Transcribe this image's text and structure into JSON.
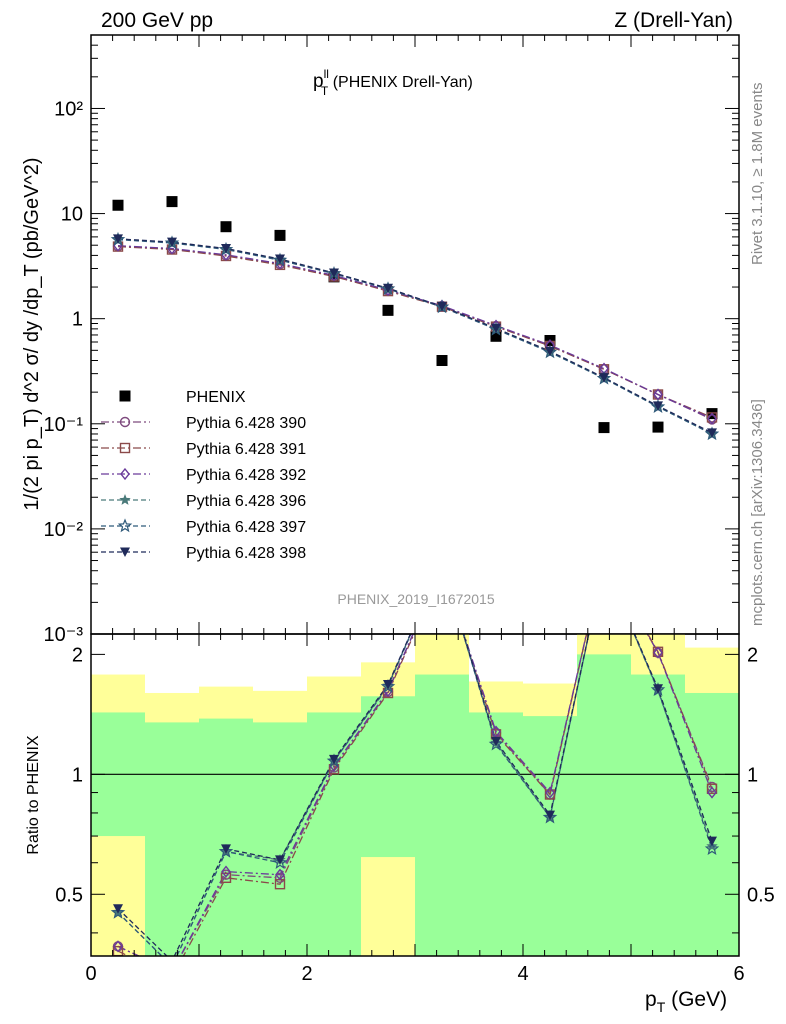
{
  "header": {
    "left": "200 GeV pp",
    "right": "Z (Drell-Yan)"
  },
  "side_labels": {
    "rivet": "Rivet 3.1.10, ≥ 1.8M events",
    "mcplots": "mcplots.cern.ch [arXiv:1306.3436]"
  },
  "chart_data": [
    {
      "type": "scatter",
      "title": "p_T^ll (PHENIX Drell-Yan)",
      "title_main": "p",
      "title_sup": "ll",
      "title_sub": "T",
      "title_rest": " (PHENIX Drell-Yan)",
      "analysis_label": "PHENIX_2019_I1672015",
      "ylabel": "1/(2 pi p_T) d^2 σ/ dy /dp_T (pb/GeV^2)",
      "yscale": "log",
      "ylim": [
        0.001,
        500
      ],
      "xlim": [
        0,
        6
      ],
      "y_tick_labels": [
        "10⁻³",
        "10⁻²",
        "10⁻¹",
        "1",
        "10",
        "10²"
      ],
      "legend_position": "lower-left",
      "x": [
        0.25,
        0.75,
        1.25,
        1.75,
        2.25,
        2.75,
        3.25,
        3.75,
        4.25,
        4.75,
        5.25,
        5.75
      ],
      "series": [
        {
          "name": "PHENIX",
          "marker": "square-filled",
          "color": "#000000",
          "values": [
            12.0,
            13.0,
            7.5,
            6.2,
            2.5,
            1.2,
            0.4,
            0.68,
            0.62,
            0.092,
            0.093,
            0.125
          ]
        },
        {
          "name": "Pythia 6.428 390",
          "marker": "circle-open",
          "color": "#7e4a7e",
          "values": [
            4.9,
            4.6,
            4.0,
            3.3,
            2.55,
            1.85,
            1.32,
            0.85,
            0.55,
            0.33,
            0.19,
            0.11
          ]
        },
        {
          "name": "Pythia 6.428 391",
          "marker": "square-open",
          "color": "#8b4a4a",
          "values": [
            4.85,
            4.55,
            3.95,
            3.25,
            2.52,
            1.83,
            1.3,
            0.84,
            0.55,
            0.33,
            0.19,
            0.115
          ]
        },
        {
          "name": "Pythia 6.428 392",
          "marker": "diamond-open",
          "color": "#6a3a9a",
          "values": [
            4.95,
            4.65,
            4.05,
            3.35,
            2.58,
            1.87,
            1.33,
            0.86,
            0.56,
            0.335,
            0.19,
            0.112
          ]
        },
        {
          "name": "Pythia 6.428 396",
          "marker": "star-filled",
          "color": "#4a7a7a",
          "values": [
            5.7,
            5.3,
            4.6,
            3.65,
            2.7,
            1.93,
            1.3,
            0.8,
            0.48,
            0.27,
            0.145,
            0.08
          ]
        },
        {
          "name": "Pythia 6.428 397",
          "marker": "star-open",
          "color": "#2f5a7a",
          "values": [
            5.65,
            5.25,
            4.55,
            3.6,
            2.68,
            1.92,
            1.29,
            0.79,
            0.48,
            0.27,
            0.145,
            0.08
          ]
        },
        {
          "name": "Pythia 6.428 398",
          "marker": "triangle-down-filled",
          "color": "#1f2a5a",
          "values": [
            5.75,
            5.35,
            4.65,
            3.7,
            2.72,
            1.95,
            1.31,
            0.81,
            0.49,
            0.275,
            0.148,
            0.082
          ]
        }
      ]
    },
    {
      "type": "line",
      "ylabel": "Ratio to PHENIX",
      "xlabel": "p_T (GeV)",
      "xlabel_main": "p",
      "xlabel_sub": "T",
      "xlabel_rest": " (GeV)",
      "xlim": [
        0,
        6
      ],
      "ylim": [
        0.35,
        2.25
      ],
      "x_ticks": [
        0,
        2,
        4,
        6
      ],
      "y_ticks": [
        0.5,
        1,
        2
      ],
      "bands": {
        "bin_edges": [
          0,
          0.5,
          1,
          1.5,
          2,
          2.5,
          3,
          3.5,
          4,
          4.5,
          5,
          5.5,
          6
        ],
        "green_low": [
          0.7,
          0.35,
          0.35,
          0.35,
          0.35,
          0.62,
          0.35,
          0.35,
          0.35,
          0.35,
          0.35,
          0.35
        ],
        "green_high": [
          1.43,
          1.35,
          1.38,
          1.35,
          1.43,
          1.57,
          1.78,
          1.43,
          1.4,
          2.0,
          1.78,
          1.6
        ],
        "yellow_low": [
          0.35,
          0.57,
          0.47,
          0.47,
          0.35,
          0.35,
          0.35,
          0.35,
          0.35,
          0.35,
          0.35,
          0.42
        ],
        "yellow_high": [
          1.78,
          1.6,
          1.66,
          1.62,
          1.76,
          1.91,
          2.25,
          1.71,
          1.69,
          2.25,
          2.25,
          2.08
        ]
      },
      "series": [
        {
          "name": "Pythia 6.428 390",
          "marker": "circle-open",
          "color": "#7e4a7e",
          "values": [
            0.37,
            0.32,
            0.56,
            0.55,
            1.04,
            1.61,
            3.3,
            1.27,
            0.89,
            3.5,
            2.02,
            0.93
          ]
        },
        {
          "name": "Pythia 6.428 391",
          "marker": "square-open",
          "color": "#8b4a4a",
          "values": [
            0.36,
            0.31,
            0.55,
            0.53,
            1.03,
            1.6,
            3.25,
            1.26,
            0.89,
            3.5,
            2.03,
            0.92
          ]
        },
        {
          "name": "Pythia 6.428 392",
          "marker": "diamond-open",
          "color": "#6a3a9a",
          "values": [
            0.37,
            0.32,
            0.57,
            0.56,
            1.05,
            1.62,
            3.3,
            1.28,
            0.9,
            3.5,
            2.02,
            0.9
          ]
        },
        {
          "name": "Pythia 6.428 396",
          "marker": "star-filled",
          "color": "#4a7a7a",
          "values": [
            0.45,
            0.33,
            0.64,
            0.61,
            1.08,
            1.67,
            3.4,
            1.2,
            0.78,
            3.4,
            1.62,
            0.66
          ]
        },
        {
          "name": "Pythia 6.428 397",
          "marker": "star-open",
          "color": "#2f5a7a",
          "values": [
            0.45,
            0.33,
            0.64,
            0.6,
            1.08,
            1.66,
            3.4,
            1.19,
            0.78,
            3.4,
            1.63,
            0.65
          ]
        },
        {
          "name": "Pythia 6.428 398",
          "marker": "triangle-down-filled",
          "color": "#1f2a5a",
          "values": [
            0.46,
            0.34,
            0.65,
            0.61,
            1.09,
            1.68,
            3.4,
            1.21,
            0.79,
            3.4,
            1.64,
            0.68
          ]
        }
      ]
    }
  ]
}
